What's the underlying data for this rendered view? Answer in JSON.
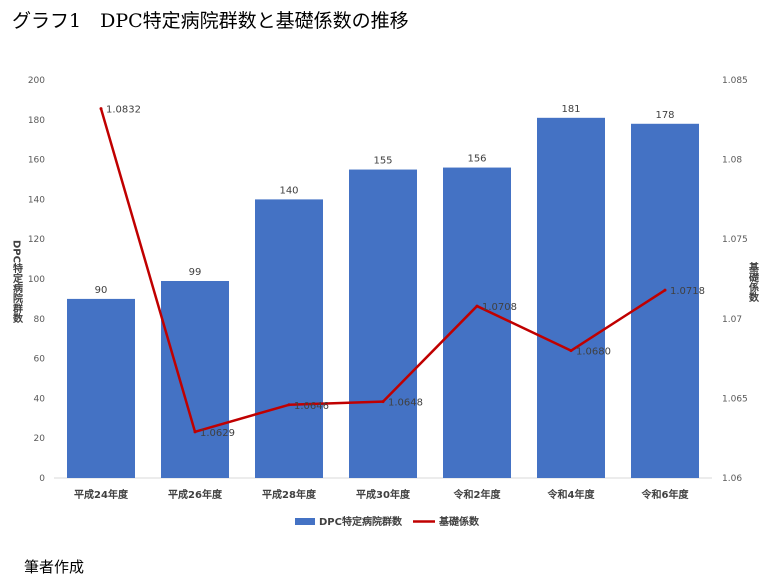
{
  "chart_data": {
    "type": "bar+line",
    "title": "グラフ1　DPC特定病院群数と基礎係数の推移",
    "categories": [
      "平成24年度",
      "平成26年度",
      "平成28年度",
      "平成30年度",
      "令和2年度",
      "令和4年度",
      "令和6年度"
    ],
    "series": [
      {
        "name": "DPC特定病院群数",
        "type": "bar",
        "axis": "left",
        "color": "#4472C4",
        "values": [
          90,
          99,
          140,
          155,
          156,
          181,
          178
        ],
        "labels": [
          "90",
          "99",
          "140",
          "155",
          "156",
          "181",
          "178"
        ]
      },
      {
        "name": "基礎係数",
        "type": "line",
        "axis": "right",
        "color": "#C00000",
        "values": [
          1.0832,
          1.0629,
          1.0646,
          1.0648,
          1.0708,
          1.068,
          1.0718
        ],
        "labels": [
          "1.0832",
          "1.0629",
          "1.0646",
          "1.0648",
          "1.0708",
          "1.0680",
          "1.0718"
        ]
      }
    ],
    "ylabel": "DPC特定病院群数",
    "y2label": "基礎係数",
    "ylim": [
      0,
      200
    ],
    "y2lim": [
      1.06,
      1.085
    ],
    "yticks": [
      "0",
      "20",
      "40",
      "60",
      "80",
      "100",
      "120",
      "140",
      "160",
      "180",
      "200"
    ],
    "y2ticks": [
      "1.06",
      "1.065",
      "1.07",
      "1.075",
      "1.08",
      "1.085"
    ],
    "legend": "bottom",
    "grid": false
  },
  "source": "筆者作成"
}
